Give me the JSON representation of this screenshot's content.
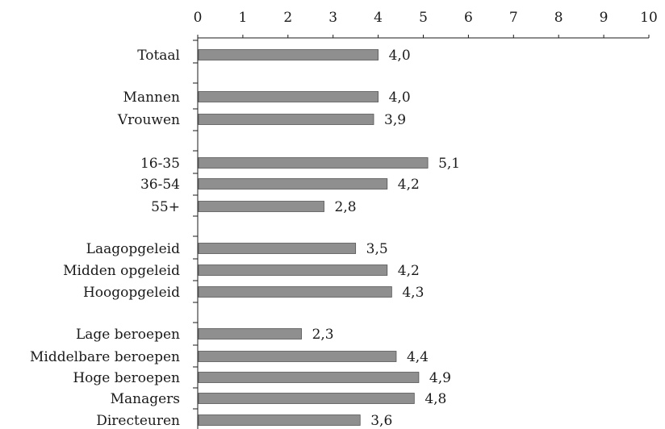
{
  "chart_data": {
    "type": "bar",
    "orientation": "horizontal",
    "xlim": [
      0,
      10
    ],
    "x_ticks": [
      "0",
      "1",
      "2",
      "3",
      "4",
      "5",
      "6",
      "7",
      "8",
      "9",
      "10"
    ],
    "axis_position": "top",
    "grid": false,
    "categories": [
      "Totaal",
      "Mannen",
      "Vrouwen",
      "16-35",
      "36-54",
      "55+",
      "Laagopgeleid",
      "Midden opgeleid",
      "Hoogopgeleid",
      "Lage beroepen",
      "Middelbare beroepen",
      "Hoge beroepen",
      "Managers",
      "Directeuren"
    ],
    "values": [
      4.0,
      4.0,
      3.9,
      5.1,
      4.2,
      2.8,
      3.5,
      4.2,
      4.3,
      2.3,
      4.4,
      4.9,
      4.8,
      3.6
    ],
    "value_labels": [
      "4,0",
      "4,0",
      "3,9",
      "5,1",
      "4,2",
      "2,8",
      "3,5",
      "4,2",
      "4,3",
      "2,3",
      "4,4",
      "4,9",
      "4,8",
      "3,6"
    ],
    "bar_color": "#8f8f8f"
  }
}
